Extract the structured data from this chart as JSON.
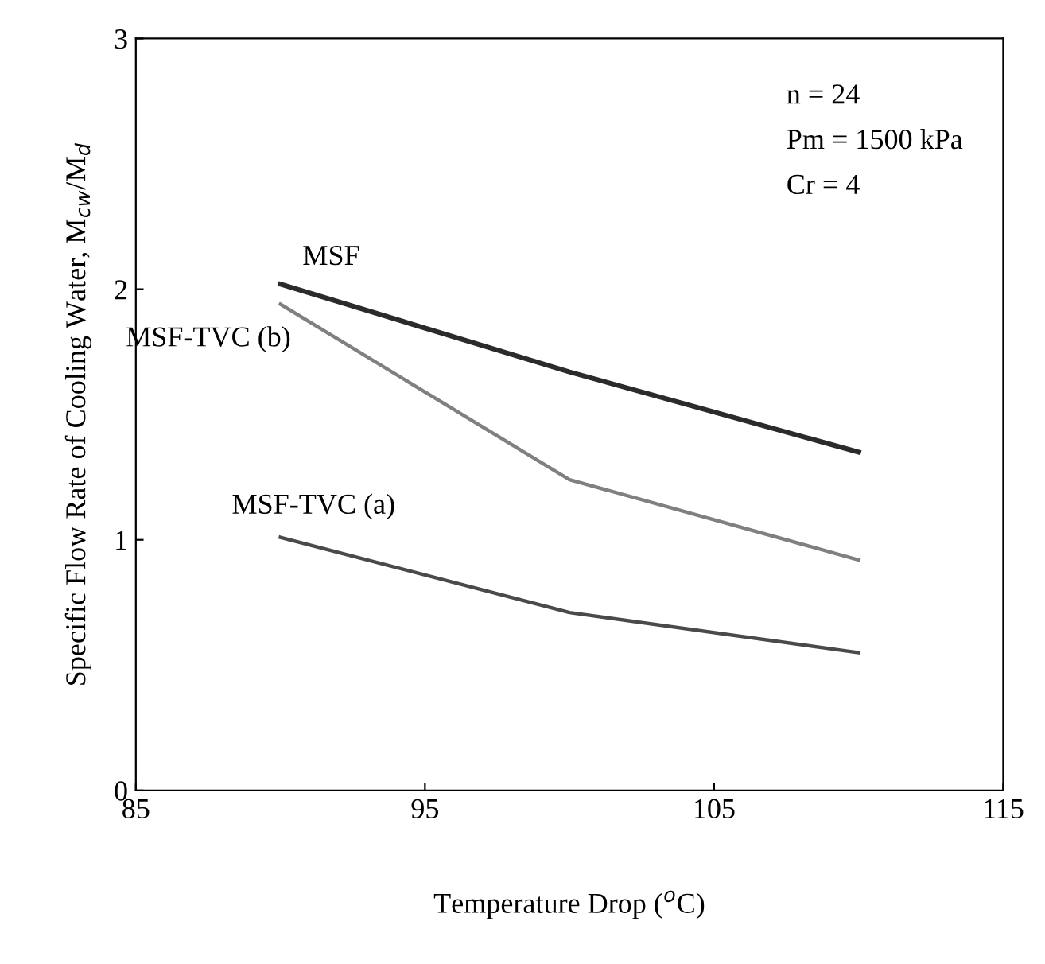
{
  "chart_data": {
    "type": "line",
    "xlabel": "Temperature Drop ($^{o}$C)",
    "ylabel": "Specific Flow Rate of Cooling Water, M$_{cw}$/M$_{d}$",
    "x": [
      90,
      100,
      110
    ],
    "series": [
      {
        "name": "MSF",
        "color": "#2b2b2b",
        "values": [
          2.02,
          1.67,
          1.35
        ]
      },
      {
        "name": "MSF-TVC (b)",
        "color": "#808080",
        "values": [
          1.94,
          1.24,
          0.92
        ]
      },
      {
        "name": "MSF-TVC (a)",
        "color": "#4a4a4a",
        "values": [
          1.01,
          0.71,
          0.55
        ]
      }
    ],
    "xlim": [
      85,
      115
    ],
    "xticks": [
      85,
      95,
      105,
      115
    ],
    "ylim": [
      0,
      3
    ],
    "yticks": [
      0,
      1,
      2,
      3
    ],
    "annotations": [
      "n = 24",
      "Pm = 1500 kPa",
      "Cr = 4"
    ],
    "grid": false,
    "legend": false,
    "marker": "none",
    "line_style": "solid"
  }
}
